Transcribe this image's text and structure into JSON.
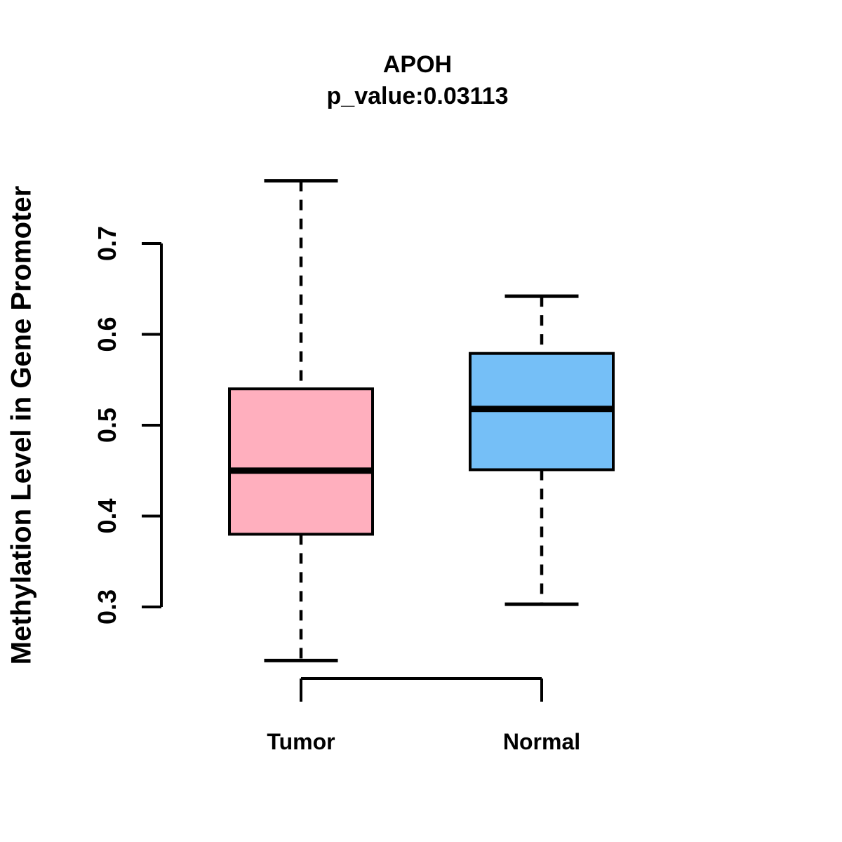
{
  "chart_data": {
    "type": "boxplot",
    "title": "APOH",
    "subtitle": "p_value:0.03113",
    "p_value": 0.03113,
    "ylabel": "Methylation Level in Gene Promoter",
    "xlabel": "",
    "categories": [
      "Tumor",
      "Normal"
    ],
    "yticks": [
      0.3,
      0.4,
      0.5,
      0.6,
      0.7
    ],
    "ylim": [
      0.22,
      0.79
    ],
    "grid": false,
    "legend": "none",
    "ink_color": "#000000",
    "background_color": "#ffffff",
    "series": [
      {
        "name": "Tumor",
        "color": "#FFAFBE",
        "min": 0.241,
        "q1": 0.38,
        "median": 0.45,
        "q3": 0.54,
        "max": 0.769
      },
      {
        "name": "Normal",
        "color": "#75BFF7",
        "min": 0.303,
        "q1": 0.451,
        "median": 0.518,
        "q3": 0.579,
        "max": 0.642
      }
    ]
  }
}
